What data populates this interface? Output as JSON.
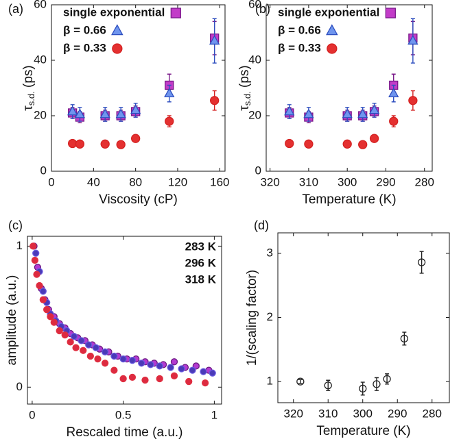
{
  "chart_data": [
    {
      "type": "scatter",
      "panel_label": "(a)",
      "xlabel": "Viscosity (cP)",
      "ylabel": [
        "τ",
        "s.d.",
        " (ps)"
      ],
      "x": [
        20,
        27,
        51,
        66,
        80,
        112,
        155
      ],
      "xlim": [
        0,
        165
      ],
      "xticks": [
        0,
        40,
        80,
        120,
        160
      ],
      "ylim": [
        0,
        60
      ],
      "yticks": [
        0,
        20,
        40,
        60
      ],
      "legend": "upper left",
      "legend_marker": true,
      "series": [
        {
          "name": "single exponential",
          "color": "#7a1a8a",
          "fill": "#c23cc8",
          "marker": "square",
          "values": [
            21,
            19.5,
            20,
            20,
            21.5,
            31,
            48
          ],
          "errors": [
            2,
            2,
            2,
            2,
            2,
            4,
            6
          ]
        },
        {
          "name": "β = 0.66",
          "color": "#2f4fbf",
          "fill": "#6f95ee",
          "marker": "triangle",
          "values": [
            21.5,
            20.5,
            20.5,
            20.5,
            22,
            28,
            47
          ],
          "errors": [
            2.5,
            2.5,
            2.5,
            2.5,
            2.5,
            3,
            8
          ]
        },
        {
          "name": "β = 0.33",
          "color": "#d42020",
          "fill": "#e43030",
          "marker": "circle",
          "values": [
            10,
            9.8,
            9.8,
            9.6,
            11.8,
            18,
            25.5
          ],
          "errors": [
            0.8,
            0.8,
            0.8,
            0.8,
            1,
            2,
            3.5
          ]
        }
      ]
    },
    {
      "type": "scatter",
      "panel_label": "(b)",
      "xlabel": "Temperature (K)",
      "ylabel": [
        "τ",
        "s.d.",
        " (ps)"
      ],
      "x": [
        315,
        310,
        300,
        296,
        293,
        288,
        283
      ],
      "xlim": [
        321,
        278
      ],
      "xticks": [
        320,
        310,
        300,
        290,
        280
      ],
      "ylim": [
        0,
        60
      ],
      "yticks": [
        0,
        20,
        40,
        60
      ],
      "legend": "upper left",
      "legend_marker": true,
      "series": [
        {
          "name": "single exponential",
          "color": "#7a1a8a",
          "fill": "#c23cc8",
          "marker": "square",
          "values": [
            21,
            19.5,
            20,
            20,
            21.5,
            31,
            48
          ],
          "errors": [
            2,
            2,
            2,
            2,
            2,
            4,
            6
          ]
        },
        {
          "name": "β = 0.66",
          "color": "#2f4fbf",
          "fill": "#6f95ee",
          "marker": "triangle",
          "values": [
            21.5,
            20.5,
            20.5,
            20.5,
            22,
            28,
            47
          ],
          "errors": [
            2.5,
            2.5,
            2.5,
            2.5,
            2.5,
            3,
            8
          ]
        },
        {
          "name": "β = 0.33",
          "color": "#d42020",
          "fill": "#e43030",
          "marker": "circle",
          "values": [
            10,
            9.8,
            9.8,
            9.6,
            11.8,
            18,
            25.5
          ],
          "errors": [
            0.8,
            0.8,
            0.8,
            0.8,
            1,
            2,
            3.5
          ]
        }
      ]
    },
    {
      "type": "scatter",
      "panel_label": "(c)",
      "xlabel": "Rescaled time (a.u.)",
      "ylabel": "amplitude (a.u.)",
      "xlim": [
        -0.026,
        1.04
      ],
      "xticks": [
        0,
        0.5,
        1
      ],
      "ylim": [
        -0.12,
        1.07
      ],
      "yticks": [
        0,
        1
      ],
      "legend": "upper right",
      "legend_marker": false,
      "series": [
        {
          "name": "283 K",
          "color": "#6a1a80",
          "fill": "#b43ad0",
          "marker": "circle",
          "x": [
            0.01,
            0.03,
            0.05,
            0.07,
            0.09,
            0.12,
            0.15,
            0.18,
            0.21,
            0.25,
            0.29,
            0.33,
            0.37,
            0.42,
            0.47,
            0.52,
            0.57,
            0.62,
            0.67,
            0.72,
            0.78,
            0.84,
            0.9,
            0.97
          ],
          "values": [
            1.0,
            0.85,
            0.7,
            0.62,
            0.55,
            0.5,
            0.45,
            0.42,
            0.38,
            0.35,
            0.33,
            0.3,
            0.27,
            0.25,
            0.22,
            0.2,
            0.2,
            0.18,
            0.17,
            0.16,
            0.18,
            0.14,
            0.15,
            0.12
          ]
        },
        {
          "name": "296 K",
          "color": "#6a5ae0",
          "fill": "#4a3ab8",
          "marker": "circle",
          "x": [
            0.02,
            0.04,
            0.06,
            0.08,
            0.1,
            0.13,
            0.16,
            0.19,
            0.23,
            0.27,
            0.31,
            0.35,
            0.4,
            0.45,
            0.5,
            0.55,
            0.6,
            0.65,
            0.7,
            0.76,
            0.82,
            0.88,
            0.94,
            0.99
          ],
          "values": [
            0.95,
            0.82,
            0.68,
            0.6,
            0.52,
            0.47,
            0.43,
            0.4,
            0.36,
            0.33,
            0.3,
            0.28,
            0.25,
            0.22,
            0.2,
            0.19,
            0.17,
            0.16,
            0.15,
            0.14,
            0.13,
            0.12,
            0.11,
            0.1
          ]
        },
        {
          "name": "318 K",
          "color": "#e03040",
          "fill": "#dd2a40",
          "marker": "circle",
          "x": [
            0.005,
            0.015,
            0.025,
            0.04,
            0.06,
            0.08,
            0.1,
            0.12,
            0.15,
            0.18,
            0.21,
            0.24,
            0.28,
            0.32,
            0.36,
            0.4,
            0.45,
            0.5,
            0.55,
            0.62,
            0.7,
            0.78,
            0.86,
            0.95
          ],
          "values": [
            1.0,
            0.9,
            0.8,
            0.72,
            0.62,
            0.55,
            0.5,
            0.46,
            0.4,
            0.37,
            0.32,
            0.28,
            0.26,
            0.22,
            0.2,
            0.17,
            0.12,
            0.06,
            0.07,
            0.05,
            0.06,
            0.08,
            0.04,
            0.03
          ]
        }
      ]
    },
    {
      "type": "scatter",
      "panel_label": "(d)",
      "xlabel": "Temperature (K)",
      "ylabel": "1/(scaling factor)",
      "x": [
        318,
        310,
        300,
        296,
        293,
        288,
        283
      ],
      "xlim": [
        324.5,
        275
      ],
      "xticks": [
        320,
        310,
        300,
        290,
        280
      ],
      "ylim": [
        0.67,
        3.32
      ],
      "yticks": [
        1,
        2,
        3
      ],
      "series": [
        {
          "color": "#222222",
          "fill": "none",
          "marker": "circle",
          "values": [
            1.0,
            0.94,
            0.89,
            0.96,
            1.04,
            1.67,
            2.86
          ],
          "errors": [
            0.03,
            0.08,
            0.1,
            0.1,
            0.08,
            0.1,
            0.17
          ]
        }
      ]
    }
  ]
}
